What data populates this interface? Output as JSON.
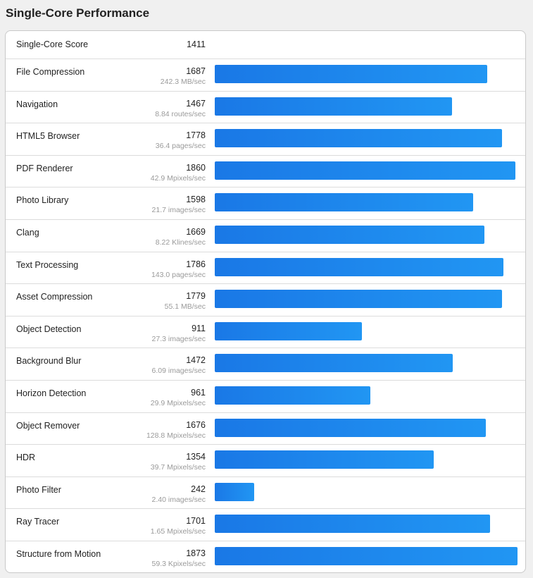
{
  "title": "Single-Core Performance",
  "score": {
    "label": "Single-Core Score",
    "value": "1411"
  },
  "bar_max": 1873,
  "benchmarks": [
    {
      "name": "File Compression",
      "score": 1687,
      "rate": "242.3 MB/sec"
    },
    {
      "name": "Navigation",
      "score": 1467,
      "rate": "8.84 routes/sec"
    },
    {
      "name": "HTML5 Browser",
      "score": 1778,
      "rate": "36.4 pages/sec"
    },
    {
      "name": "PDF Renderer",
      "score": 1860,
      "rate": "42.9 Mpixels/sec"
    },
    {
      "name": "Photo Library",
      "score": 1598,
      "rate": "21.7 images/sec"
    },
    {
      "name": "Clang",
      "score": 1669,
      "rate": "8.22 Klines/sec"
    },
    {
      "name": "Text Processing",
      "score": 1786,
      "rate": "143.0 pages/sec"
    },
    {
      "name": "Asset Compression",
      "score": 1779,
      "rate": "55.1 MB/sec"
    },
    {
      "name": "Object Detection",
      "score": 911,
      "rate": "27.3 images/sec"
    },
    {
      "name": "Background Blur",
      "score": 1472,
      "rate": "6.09 images/sec"
    },
    {
      "name": "Horizon Detection",
      "score": 961,
      "rate": "29.9 Mpixels/sec"
    },
    {
      "name": "Object Remover",
      "score": 1676,
      "rate": "128.8 Mpixels/sec"
    },
    {
      "name": "HDR",
      "score": 1354,
      "rate": "39.7 Mpixels/sec"
    },
    {
      "name": "Photo Filter",
      "score": 242,
      "rate": "2.40 images/sec"
    },
    {
      "name": "Ray Tracer",
      "score": 1701,
      "rate": "1.65 Mpixels/sec"
    },
    {
      "name": "Structure from Motion",
      "score": 1873,
      "rate": "59.3 Kpixels/sec"
    }
  ]
}
